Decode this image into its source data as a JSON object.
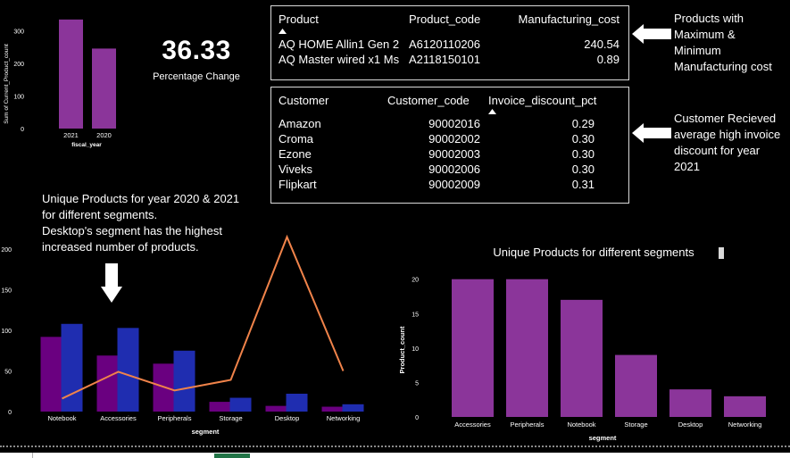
{
  "kpi": {
    "value": "36.33",
    "label": "Percentage Change"
  },
  "table_top": {
    "headers": [
      "Product",
      "Product_code",
      "Manufacturing_cost"
    ],
    "rows": [
      [
        "AQ HOME Allin1 Gen 2",
        "A6120110206",
        "240.54"
      ],
      [
        "AQ Master wired x1 Ms",
        "A2118150101",
        "0.89"
      ]
    ]
  },
  "table_bottom": {
    "headers": [
      "Customer",
      "Customer_code",
      "Invoice_discount_pct"
    ],
    "rows": [
      [
        "Amazon",
        "90002016",
        "0.29"
      ],
      [
        "Croma",
        "90002002",
        "0.30"
      ],
      [
        "Ezone",
        "90002003",
        "0.30"
      ],
      [
        "Viveks",
        "90002006",
        "0.30"
      ],
      [
        "Flipkart",
        "90002009",
        "0.31"
      ]
    ]
  },
  "notes": {
    "top_right": [
      "Products with",
      "Maximum &",
      "Minimum",
      "Manufacturing cost"
    ],
    "mid_right": [
      "Customer Recieved",
      "average high invoice",
      "discount for year",
      "2021"
    ],
    "left": [
      "Unique Products for year 2020 & 2021",
      "for different segments.",
      "Desktop's segment has the highest",
      "increased number of products."
    ]
  },
  "colors": {
    "purple": "#8b359a",
    "dark_purple": "#6a0080",
    "blue": "#1f2db0",
    "orange": "#f0834a",
    "white": "#ffffff"
  },
  "chart_data": [
    {
      "type": "bar",
      "categories": [
        "2021",
        "2020"
      ],
      "values": [
        334,
        245
      ],
      "title": "",
      "xlabel": "fiscal_year",
      "ylabel": "Sum of Current_Product_count",
      "ylim": [
        0,
        350
      ],
      "yticks": [
        0,
        100,
        200,
        300
      ],
      "grid": false
    },
    {
      "type": "bar",
      "categories": [
        "Notebook",
        "Accessories",
        "Peripherals",
        "Storage",
        "Desktop",
        "Networking"
      ],
      "series": [
        {
          "values": [
            92,
            69,
            59,
            12,
            7,
            6
          ]
        },
        {
          "values": [
            108,
            103,
            75,
            17,
            22,
            9
          ]
        }
      ],
      "line_values": [
        16,
        49,
        26,
        39,
        215,
        50
      ],
      "title": "",
      "xlabel": "segment",
      "ylabel": "",
      "ylim": [
        0,
        210
      ],
      "yticks": [
        0,
        50,
        100,
        150,
        200
      ],
      "grid": false
    },
    {
      "type": "bar",
      "categories": [
        "Accessories",
        "Peripherals",
        "Notebook",
        "Storage",
        "Desktop",
        "Networking"
      ],
      "values": [
        20,
        20,
        17,
        9,
        4,
        3
      ],
      "title": "Unique Products for different segments",
      "xlabel": "segment",
      "ylabel": "Product_count",
      "ylim": [
        0,
        21
      ],
      "yticks": [
        0,
        5,
        10,
        15,
        20
      ],
      "grid": false
    }
  ]
}
